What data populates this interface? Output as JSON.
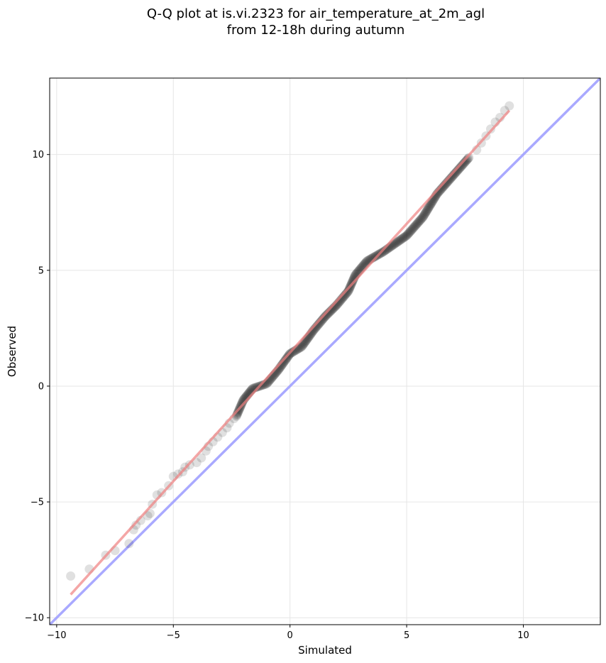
{
  "chart_data": {
    "type": "scatter",
    "title_lines": [
      "Q-Q plot at is.vi.2323 for air_temperature_at_2m_agl",
      "from 12-18h during autumn"
    ],
    "xlabel": "Simulated",
    "ylabel": "Observed",
    "xlim": [
      -10.3,
      13.3
    ],
    "ylim": [
      -10.3,
      13.3
    ],
    "xticks": [
      -10,
      -5,
      0,
      5,
      10
    ],
    "yticks": [
      -10,
      -5,
      0,
      5,
      10
    ],
    "xtick_labels": [
      "−10",
      "−5",
      "0",
      "5",
      "10"
    ],
    "ytick_labels": [
      "−10",
      "−5",
      "0",
      "5",
      "10"
    ],
    "grid": true,
    "series": [
      {
        "kind": "points",
        "color": "#000000",
        "sparse_points": [
          [
            -9.4,
            -8.2
          ],
          [
            -8.6,
            -7.9
          ],
          [
            -7.9,
            -7.3
          ],
          [
            -7.5,
            -7.1
          ],
          [
            -6.9,
            -6.8
          ],
          [
            -6.7,
            -6.2
          ],
          [
            -6.6,
            -6.0
          ],
          [
            -6.4,
            -5.8
          ],
          [
            -6.1,
            -5.6
          ],
          [
            -6.0,
            -5.5
          ],
          [
            -5.9,
            -5.1
          ],
          [
            -5.7,
            -4.7
          ],
          [
            -5.5,
            -4.6
          ],
          [
            -5.2,
            -4.3
          ],
          [
            -5.0,
            -3.9
          ],
          [
            -4.8,
            -3.8
          ],
          [
            -4.6,
            -3.7
          ],
          [
            -4.5,
            -3.5
          ],
          [
            -4.3,
            -3.4
          ],
          [
            -4.0,
            -3.3
          ],
          [
            -3.8,
            -3.1
          ],
          [
            -3.6,
            -2.8
          ],
          [
            -3.5,
            -2.6
          ],
          [
            -3.3,
            -2.4
          ],
          [
            -3.1,
            -2.2
          ],
          [
            -2.9,
            -2.0
          ],
          [
            -2.7,
            -1.8
          ],
          [
            -2.6,
            -1.6
          ],
          [
            -2.4,
            -1.4
          ],
          [
            8.0,
            10.2
          ],
          [
            8.2,
            10.5
          ],
          [
            8.4,
            10.8
          ],
          [
            8.6,
            11.1
          ],
          [
            8.8,
            11.4
          ],
          [
            9.0,
            11.6
          ],
          [
            9.2,
            11.9
          ],
          [
            9.4,
            12.1
          ]
        ],
        "dense_curve": [
          [
            -2.3,
            -1.3
          ],
          [
            -2.0,
            -0.6
          ],
          [
            -1.6,
            -0.1
          ],
          [
            -1.0,
            0.1
          ],
          [
            -0.5,
            0.7
          ],
          [
            0.0,
            1.4
          ],
          [
            0.5,
            1.7
          ],
          [
            1.0,
            2.4
          ],
          [
            1.5,
            3.0
          ],
          [
            2.0,
            3.5
          ],
          [
            2.5,
            4.1
          ],
          [
            2.8,
            4.8
          ],
          [
            3.3,
            5.4
          ],
          [
            4.0,
            5.8
          ],
          [
            5.0,
            6.5
          ],
          [
            5.7,
            7.3
          ],
          [
            6.3,
            8.3
          ],
          [
            7.0,
            9.1
          ],
          [
            7.7,
            9.9
          ]
        ]
      },
      {
        "kind": "fit-line",
        "color": "#f08080",
        "points": [
          [
            -9.4,
            -9.0
          ],
          [
            9.4,
            11.9
          ]
        ]
      },
      {
        "kind": "identity-line",
        "color": "#a0a0ff",
        "points": [
          [
            -10.3,
            -10.3
          ],
          [
            13.3,
            13.3
          ]
        ]
      }
    ]
  }
}
